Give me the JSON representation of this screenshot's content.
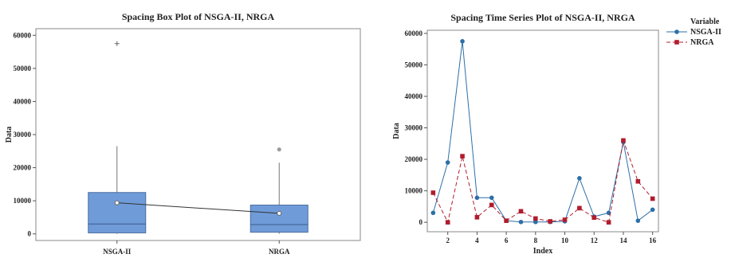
{
  "chart_data": [
    {
      "type": "box",
      "title": "Spacing Box Plot of NSGA-II, NRGA",
      "xlabel": "",
      "ylabel": "Data",
      "categories": [
        "NSGA-II",
        "NRGA"
      ],
      "ylim": [
        -2000,
        62000
      ],
      "yticks": [
        0,
        10000,
        20000,
        30000,
        40000,
        50000,
        60000
      ],
      "boxes": [
        {
          "name": "NSGA-II",
          "whisker_low": 0,
          "q1": 300,
          "median": 3000,
          "q3": 12500,
          "whisker_high": 26500,
          "mean": 9400,
          "outliers": [
            57500
          ]
        },
        {
          "name": "NRGA",
          "whisker_low": 0,
          "q1": 500,
          "median": 2800,
          "q3": 8700,
          "whisker_high": 21500,
          "mean": 6200,
          "outliers": [
            25500
          ]
        }
      ],
      "mean_connect_line": true,
      "box_color": "#6f9bd8",
      "grid": false
    },
    {
      "type": "line",
      "title": "Spacing Time Series Plot of NSGA-II, NRGA",
      "xlabel": "Index",
      "ylabel": "Data",
      "x": [
        1,
        2,
        3,
        4,
        5,
        6,
        7,
        8,
        9,
        10,
        11,
        12,
        13,
        14,
        15,
        16
      ],
      "xticks": [
        2,
        4,
        6,
        8,
        10,
        12,
        14,
        16
      ],
      "ylim": [
        -3000,
        61000
      ],
      "yticks": [
        0,
        10000,
        20000,
        30000,
        40000,
        50000,
        60000
      ],
      "legend_title": "Variable",
      "legend_position": "right",
      "series": [
        {
          "name": "NSGA-II",
          "color": "#2c6fa8",
          "marker": "circle",
          "dash": "solid",
          "values": [
            3000,
            19000,
            57500,
            7800,
            7800,
            500,
            100,
            100,
            100,
            300,
            14000,
            1800,
            3000,
            25500,
            500,
            4000
          ]
        },
        {
          "name": "NRGA",
          "color": "#b01c2e",
          "marker": "square",
          "dash": "dashed",
          "values": [
            9400,
            0,
            21000,
            1600,
            5500,
            500,
            3500,
            1200,
            300,
            800,
            4500,
            1500,
            0,
            26000,
            13000,
            7500
          ]
        }
      ],
      "grid": false
    }
  ]
}
